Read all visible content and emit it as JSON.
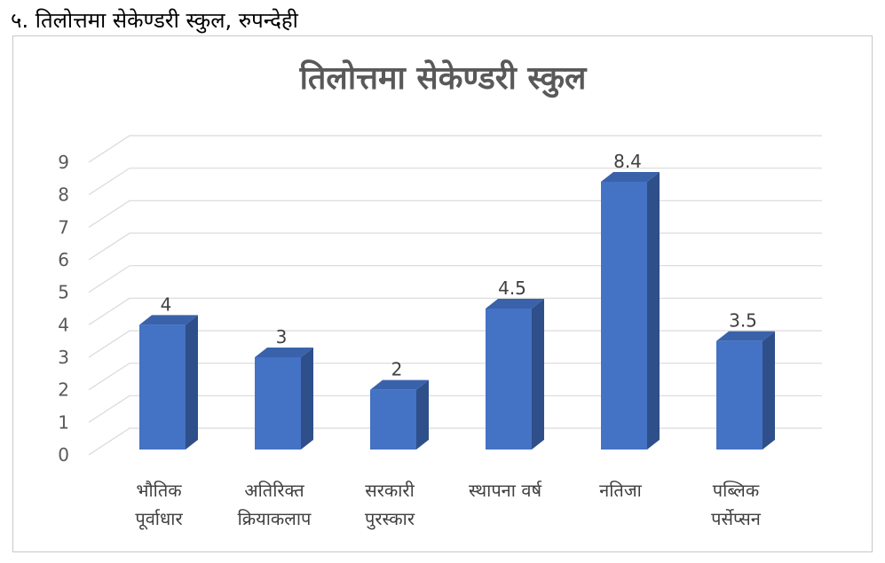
{
  "page": {
    "heading": "५. तिलोत्तमा सेकेण्डरी स्कुल, रुपन्देही"
  },
  "colors": {
    "bar_front": "#4472c4",
    "bar_side": "#2f4f8a",
    "bar_top": "#3a62ab",
    "grid": "#d9d9d9",
    "text": "#595959"
  },
  "chart_data": {
    "type": "bar",
    "title": "तिलोत्तमा सेकेण्डरी स्कुल",
    "categories": [
      [
        "भौतिक",
        "पूर्वाधार"
      ],
      [
        "अतिरिक्त",
        "क्रियाकलाप"
      ],
      [
        "सरकारी",
        "पुरस्कार"
      ],
      [
        "स्थापना वर्ष"
      ],
      [
        "नतिजा"
      ],
      [
        "पब्लिक",
        "पर्सेप्सन"
      ]
    ],
    "values": [
      4,
      3,
      2,
      4.5,
      8.4,
      3.5
    ],
    "data_labels": [
      "4",
      "3",
      "2",
      "4.5",
      "8.4",
      "3.5"
    ],
    "ylim": [
      0,
      9
    ],
    "yticks": [
      "0",
      "1",
      "2",
      "3",
      "4",
      "5",
      "6",
      "7",
      "8",
      "9"
    ],
    "grid": true,
    "legend": "none"
  }
}
